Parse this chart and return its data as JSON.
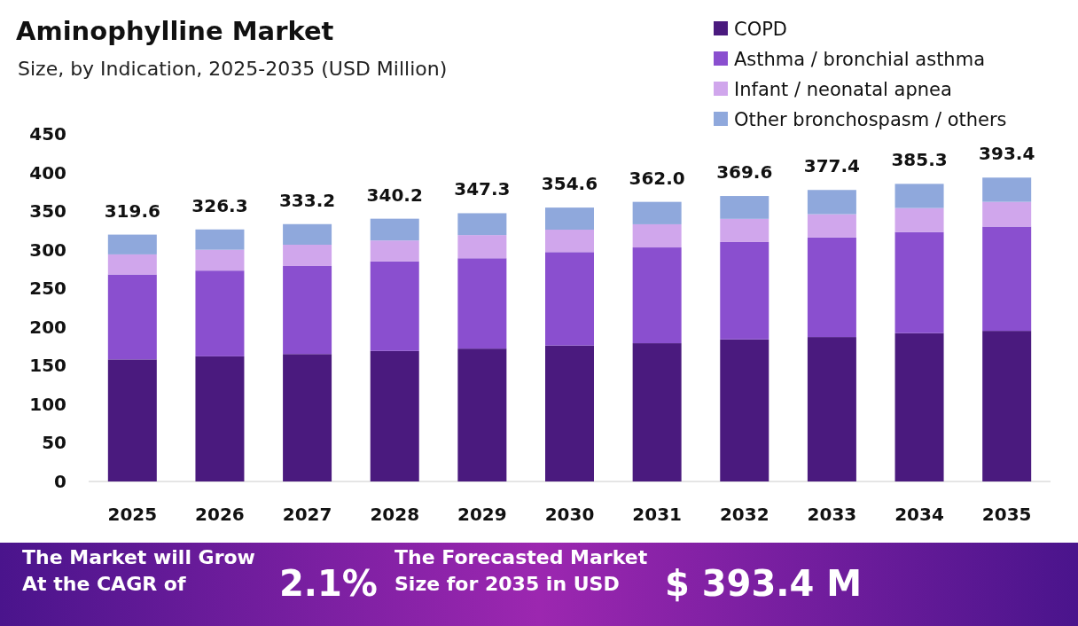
{
  "chart_data": {
    "type": "bar",
    "title": "Aminophylline Market",
    "subtitle": "Size, by Indication, 2025-2035 (USD Million)",
    "categories": [
      "2025",
      "2026",
      "2027",
      "2028",
      "2029",
      "2030",
      "2031",
      "2032",
      "2033",
      "2034",
      "2035"
    ],
    "stacked": true,
    "series": [
      {
        "name": "COPD",
        "color": "#4a1a7e",
        "values": [
          158,
          162,
          165,
          169,
          172,
          176,
          179,
          184,
          187,
          192,
          195
        ]
      },
      {
        "name": "Asthma / bronchial asthma",
        "color": "#8a4fcf",
        "values": [
          110,
          111,
          114,
          116,
          117,
          121,
          124,
          126,
          129,
          131,
          135
        ]
      },
      {
        "name": "Infant / neonatal apnea",
        "color": "#d0a6ec",
        "values": [
          26,
          27,
          27.5,
          27,
          30,
          29,
          30,
          30,
          30,
          31,
          32
        ]
      },
      {
        "name": "Other bronchospasm / others",
        "color": "#8fa8dc",
        "values": [
          25.6,
          26.3,
          26.7,
          28.2,
          28.3,
          28.6,
          29,
          29.6,
          31.4,
          31.3,
          31.4
        ]
      }
    ],
    "totals": [
      "319.6",
      "326.3",
      "333.2",
      "340.2",
      "347.3",
      "354.6",
      "362.0",
      "369.6",
      "377.4",
      "385.3",
      "393.4"
    ],
    "ylim": [
      0,
      450
    ],
    "yticks": [
      0,
      50,
      100,
      150,
      200,
      250,
      300,
      350,
      400,
      450
    ],
    "grid": false,
    "legend": "top right",
    "annotations": [
      "The Market will Grow At the CAGR of",
      "2.1%",
      "The Forecasted Market Size for 2035 in USD",
      "$ 393.4 M"
    ]
  }
}
